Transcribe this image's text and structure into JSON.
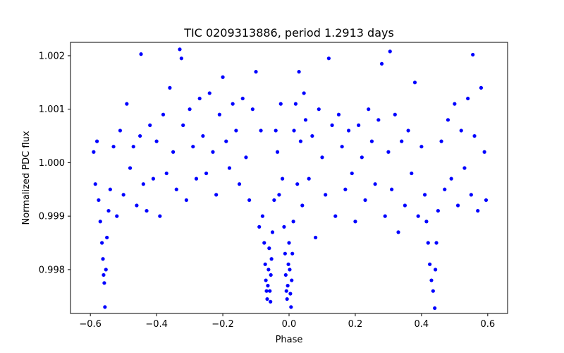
{
  "chart_data": {
    "type": "scatter",
    "title": "TIC 0209313886, period 1.2913 days",
    "xlabel": "Phase",
    "ylabel": "Normalized PDC flux",
    "xlim": [
      -0.66,
      0.66
    ],
    "ylim": [
      0.99718,
      1.00225
    ],
    "x_ticks": [
      -0.6,
      -0.4,
      -0.2,
      0.0,
      0.2,
      0.4,
      0.6
    ],
    "x_tick_labels": [
      "−0.6",
      "−0.4",
      "−0.2",
      "0.0",
      "0.2",
      "0.4",
      "0.6"
    ],
    "y_ticks": [
      0.998,
      0.999,
      1.0,
      1.001,
      1.002
    ],
    "y_tick_labels": [
      "0.998",
      "0.999",
      "1.000",
      "1.001",
      "1.002"
    ],
    "grid": false,
    "legend": "none",
    "marker_color": "#0000ff",
    "series": [
      {
        "points": [
          [
            -0.59,
            1.0002
          ],
          [
            -0.585,
            0.9996
          ],
          [
            -0.58,
            1.0004
          ],
          [
            -0.575,
            0.9993
          ],
          [
            -0.57,
            0.9989
          ],
          [
            -0.565,
            0.9985
          ],
          [
            -0.562,
            0.9982
          ],
          [
            -0.56,
            0.9979
          ],
          [
            -0.558,
            0.99775
          ],
          [
            -0.556,
            0.9973
          ],
          [
            -0.553,
            0.998
          ],
          [
            -0.55,
            0.9986
          ],
          [
            -0.545,
            0.9991
          ],
          [
            -0.54,
            0.9995
          ],
          [
            -0.53,
            1.0003
          ],
          [
            -0.52,
            0.999
          ],
          [
            -0.51,
            1.0006
          ],
          [
            -0.5,
            0.9994
          ],
          [
            -0.49,
            1.0011
          ],
          [
            -0.48,
            0.9999
          ],
          [
            -0.47,
            1.0003
          ],
          [
            -0.46,
            0.9992
          ],
          [
            -0.45,
            1.0005
          ],
          [
            -0.447,
            1.00203
          ],
          [
            -0.44,
            0.9996
          ],
          [
            -0.43,
            0.9991
          ],
          [
            -0.42,
            1.0007
          ],
          [
            -0.41,
            0.9997
          ],
          [
            -0.4,
            1.0004
          ],
          [
            -0.39,
            0.999
          ],
          [
            -0.38,
            1.0009
          ],
          [
            -0.37,
            0.9998
          ],
          [
            -0.36,
            1.0014
          ],
          [
            -0.35,
            1.0002
          ],
          [
            -0.34,
            0.9995
          ],
          [
            -0.33,
            1.00212
          ],
          [
            -0.325,
            1.00195
          ],
          [
            -0.32,
            1.0007
          ],
          [
            -0.31,
            0.9993
          ],
          [
            -0.3,
            1.001
          ],
          [
            -0.29,
            1.0003
          ],
          [
            -0.28,
            0.9997
          ],
          [
            -0.27,
            1.0012
          ],
          [
            -0.26,
            1.0005
          ],
          [
            -0.25,
            0.9998
          ],
          [
            -0.24,
            1.0013
          ],
          [
            -0.23,
            1.0002
          ],
          [
            -0.22,
            0.9994
          ],
          [
            -0.21,
            1.0009
          ],
          [
            -0.2,
            1.0016
          ],
          [
            -0.19,
            1.0004
          ],
          [
            -0.18,
            0.9999
          ],
          [
            -0.17,
            1.0011
          ],
          [
            -0.16,
            1.0006
          ],
          [
            -0.15,
            0.9996
          ],
          [
            -0.14,
            1.0012
          ],
          [
            -0.13,
            1.0001
          ],
          [
            -0.12,
            0.9993
          ],
          [
            -0.11,
            1.001
          ],
          [
            -0.1,
            1.0017
          ],
          [
            -0.09,
            0.9988
          ],
          [
            -0.085,
            1.0006
          ],
          [
            -0.08,
            0.999
          ],
          [
            -0.075,
            0.9985
          ],
          [
            -0.072,
            0.9981
          ],
          [
            -0.07,
            0.9978
          ],
          [
            -0.068,
            0.9976
          ],
          [
            -0.066,
            0.99745
          ],
          [
            -0.064,
            0.9977
          ],
          [
            -0.062,
            0.998
          ],
          [
            -0.06,
            0.9984
          ],
          [
            -0.058,
            0.9976
          ],
          [
            -0.056,
            0.9974
          ],
          [
            -0.055,
            0.9979
          ],
          [
            -0.053,
            0.9982
          ],
          [
            -0.05,
            0.9987
          ],
          [
            -0.045,
            0.9993
          ],
          [
            -0.04,
            1.0006
          ],
          [
            -0.035,
            1.0002
          ],
          [
            -0.03,
            0.9994
          ],
          [
            -0.025,
            1.0011
          ],
          [
            -0.02,
            0.9997
          ],
          [
            -0.015,
            0.9988
          ],
          [
            -0.012,
            0.9983
          ],
          [
            -0.01,
            0.9979
          ],
          [
            -0.008,
            0.9976
          ],
          [
            -0.006,
            0.99745
          ],
          [
            -0.004,
            0.9977
          ],
          [
            -0.002,
            0.9981
          ],
          [
            0.0,
            0.9985
          ],
          [
            0.002,
            0.998
          ],
          [
            0.004,
            0.99755
          ],
          [
            0.006,
            0.9973
          ],
          [
            0.008,
            0.9978
          ],
          [
            0.01,
            0.9983
          ],
          [
            0.013,
            0.9989
          ],
          [
            0.015,
            1.0006
          ],
          [
            0.02,
            1.0011
          ],
          [
            0.025,
            0.9996
          ],
          [
            0.03,
            1.0017
          ],
          [
            0.035,
            1.0004
          ],
          [
            0.04,
            0.9992
          ],
          [
            0.045,
            1.0013
          ],
          [
            0.05,
            1.0008
          ],
          [
            0.06,
            0.9997
          ],
          [
            0.07,
            1.0005
          ],
          [
            0.08,
            0.9986
          ],
          [
            0.09,
            1.001
          ],
          [
            0.1,
            1.0001
          ],
          [
            0.11,
            0.9994
          ],
          [
            0.12,
            1.00195
          ],
          [
            0.13,
            1.0007
          ],
          [
            0.14,
            0.999
          ],
          [
            0.15,
            1.0009
          ],
          [
            0.16,
            1.0003
          ],
          [
            0.17,
            0.9995
          ],
          [
            0.18,
            1.0006
          ],
          [
            0.19,
            0.9998
          ],
          [
            0.2,
            0.9989
          ],
          [
            0.21,
            1.0007
          ],
          [
            0.22,
            1.0001
          ],
          [
            0.23,
            0.9993
          ],
          [
            0.24,
            1.001
          ],
          [
            0.25,
            1.0004
          ],
          [
            0.26,
            0.9996
          ],
          [
            0.27,
            1.0008
          ],
          [
            0.28,
            1.00185
          ],
          [
            0.29,
            0.999
          ],
          [
            0.3,
            1.0002
          ],
          [
            0.305,
            1.00208
          ],
          [
            0.31,
            0.9995
          ],
          [
            0.32,
            1.0009
          ],
          [
            0.33,
            0.9987
          ],
          [
            0.34,
            1.0004
          ],
          [
            0.35,
            0.9992
          ],
          [
            0.36,
            1.0006
          ],
          [
            0.37,
            0.9998
          ],
          [
            0.38,
            1.0015
          ],
          [
            0.39,
            0.999
          ],
          [
            0.4,
            1.0003
          ],
          [
            0.41,
            0.9994
          ],
          [
            0.415,
            0.9989
          ],
          [
            0.42,
            0.9985
          ],
          [
            0.425,
            0.9981
          ],
          [
            0.43,
            0.9978
          ],
          [
            0.435,
            0.9976
          ],
          [
            0.44,
            0.99728
          ],
          [
            0.442,
            0.998
          ],
          [
            0.445,
            0.9985
          ],
          [
            0.45,
            0.9991
          ],
          [
            0.46,
            1.0004
          ],
          [
            0.47,
            0.9995
          ],
          [
            0.48,
            1.0008
          ],
          [
            0.49,
            0.9997
          ],
          [
            0.5,
            1.0011
          ],
          [
            0.51,
            0.9992
          ],
          [
            0.52,
            1.0006
          ],
          [
            0.53,
            0.9999
          ],
          [
            0.54,
            1.0012
          ],
          [
            0.55,
            0.9994
          ],
          [
            0.555,
            1.00202
          ],
          [
            0.56,
            1.0005
          ],
          [
            0.57,
            0.9991
          ],
          [
            0.58,
            1.0014
          ],
          [
            0.59,
            1.0002
          ],
          [
            0.595,
            0.9993
          ]
        ]
      }
    ]
  }
}
